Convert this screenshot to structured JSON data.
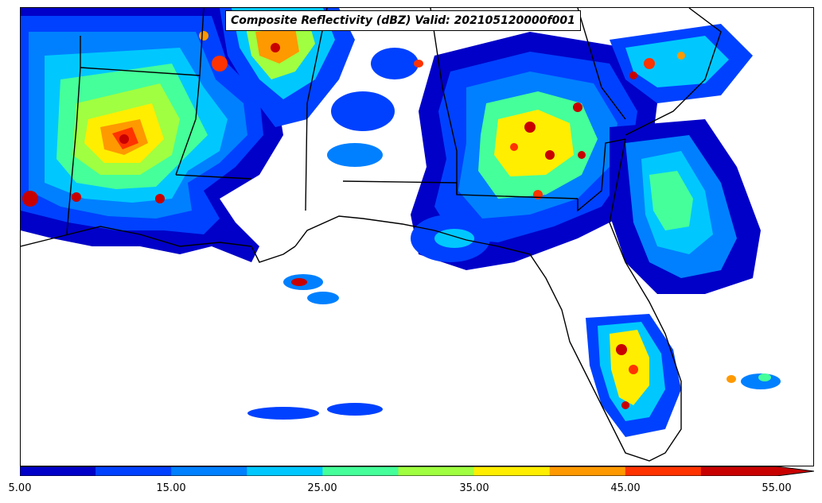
{
  "map": {
    "title": "Composite Reflectivity (dBZ) Valid: 202105120000f001",
    "colorbar": {
      "colors": [
        "#0000c8",
        "#0041ff",
        "#0080ff",
        "#00c8ff",
        "#45ff9a",
        "#a0ff40",
        "#ffee00",
        "#ff9900",
        "#ff3300",
        "#c80000"
      ],
      "ticks": [
        "5.00",
        "15.00",
        "25.00",
        "35.00",
        "45.00",
        "55.00"
      ],
      "extend": "max"
    }
  }
}
